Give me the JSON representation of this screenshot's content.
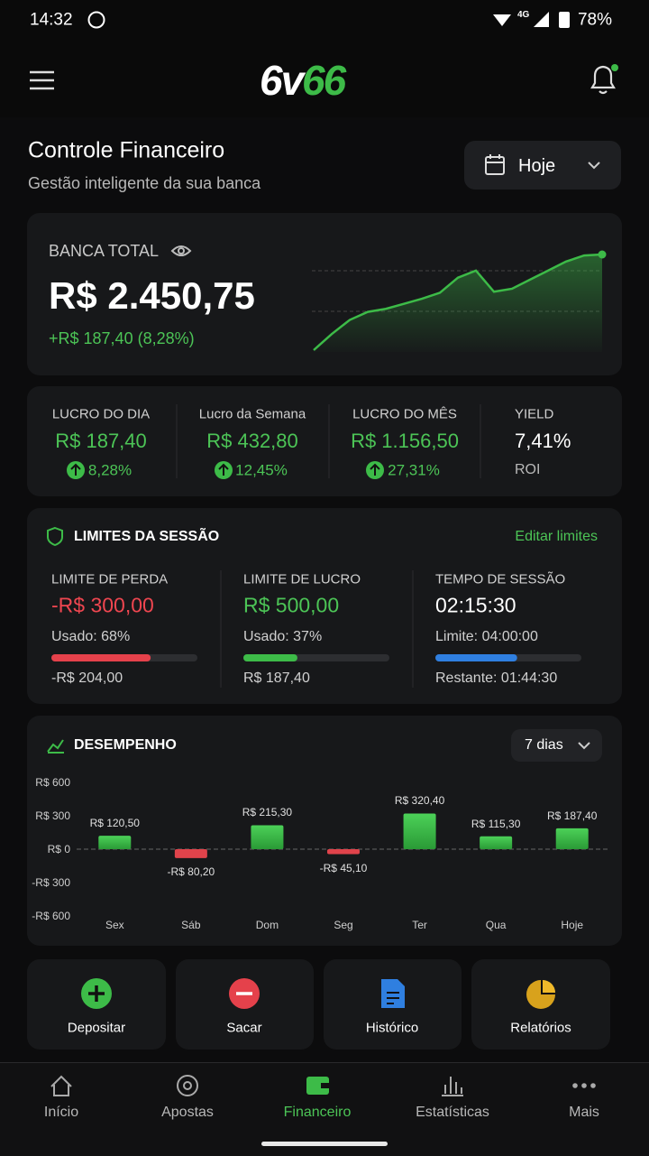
{
  "status_bar": {
    "time": "14:32",
    "network": "4G",
    "battery": "78%"
  },
  "header": {
    "logo": [
      "6v",
      "66"
    ]
  },
  "page": {
    "title": "Controle Financeiro",
    "subtitle": "Gestão inteligente da sua banca",
    "period": "Hoje"
  },
  "balance": {
    "label": "BANCA TOTAL",
    "amount": "R$ 2.450,75",
    "change": "+R$ 187,40 (8,28%)"
  },
  "stats": [
    {
      "label": "LUCRO DO DIA",
      "value": "R$ 187,40",
      "change": "8,28%",
      "color": "#4cc456"
    },
    {
      "label": "Lucro da Semana",
      "value": "R$ 432,80",
      "change": "12,45%",
      "color": "#4cc456"
    },
    {
      "label": "LUCRO DO MÊS",
      "value": "R$ 1.156,50",
      "change": "27,31%",
      "color": "#4cc456"
    },
    {
      "label": "YIELD",
      "value": "7,41%",
      "note": "ROI",
      "color": "#ffffff"
    }
  ],
  "limits": {
    "title": "LIMITES DA SESSÃO",
    "edit": "Editar limites",
    "items": [
      {
        "label": "LIMITE DE PERDA",
        "value": "-R$ 300,00",
        "usage": "Usado: 68%",
        "progress": 68,
        "value_color": "#ef4650",
        "bar_color": "#e5414b",
        "footer": "-R$ 204,00"
      },
      {
        "label": "LIMITE DE LUCRO",
        "value": "R$ 500,00",
        "usage": "Usado: 37%",
        "progress": 37,
        "value_color": "#4cc456",
        "bar_color": "#3dbb48",
        "footer": "R$ 187,40"
      },
      {
        "label": "TEMPO DE SESSÃO",
        "value": "02:15:30",
        "usage": "Limite: 04:00:00",
        "progress": 56,
        "value_color": "#ffffff",
        "bar_color": "#2f7fe0",
        "footer": "Restante: 01:44:30"
      }
    ]
  },
  "performance": {
    "range": "7 dias"
  },
  "chart_data": [
    {
      "type": "line",
      "color": "#3dbb48",
      "values": [
        0,
        16,
        30,
        38,
        41,
        46,
        51,
        57,
        72,
        79,
        58,
        61,
        70,
        79,
        88,
        94,
        95
      ]
    },
    {
      "type": "bar",
      "title": "DESEMPENHO",
      "categories": [
        "Sex",
        "Sáb",
        "Dom",
        "Seg",
        "Ter",
        "Qua",
        "Hoje"
      ],
      "values": [
        120.5,
        -80.2,
        215.3,
        -45.1,
        320.4,
        115.3,
        187.4
      ],
      "value_labels": [
        "R$ 120,50",
        "-R$ 80,20",
        "R$ 215,30",
        "-R$ 45,10",
        "R$ 320,40",
        "R$ 115,30",
        "R$ 187,40"
      ],
      "color": "#3dbb48",
      "negative_color": "#e0434b",
      "ylim": [
        -600,
        600
      ],
      "yticks": [
        {
          "value": 600,
          "label": "R$ 600"
        },
        {
          "value": 300,
          "label": "R$ 300"
        },
        {
          "value": 0,
          "label": "R$ 0"
        },
        {
          "value": -300,
          "label": "-R$ 300"
        },
        {
          "value": -600,
          "label": "-R$ 600"
        }
      ],
      "grid": false
    }
  ],
  "actions": [
    "Depositar",
    "Sacar",
    "Histórico",
    "Relatórios"
  ],
  "nav": {
    "items": [
      "Início",
      "Apostas",
      "Financeiro",
      "Estatísticas",
      "Mais"
    ],
    "active": 2
  }
}
